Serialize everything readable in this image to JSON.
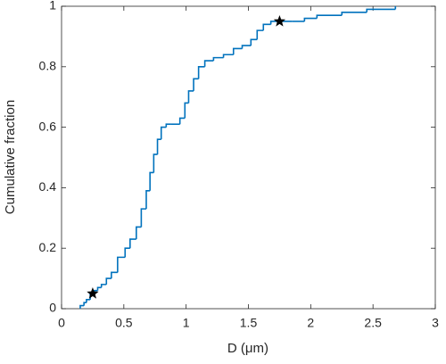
{
  "chart_data": {
    "type": "step",
    "xlabel": "D (μm)",
    "ylabel": "Cumulative fraction",
    "xlim": [
      0,
      3
    ],
    "ylim": [
      0,
      1
    ],
    "xticks": [
      0,
      0.5,
      1,
      1.5,
      2,
      2.5,
      3
    ],
    "yticks": [
      0,
      0.2,
      0.4,
      0.6,
      0.8,
      1
    ],
    "box": true,
    "series": [
      {
        "type": "step",
        "color": "#0072bd",
        "x": [
          0.15,
          0.18,
          0.2,
          0.23,
          0.26,
          0.29,
          0.32,
          0.36,
          0.4,
          0.45,
          0.51,
          0.55,
          0.6,
          0.64,
          0.68,
          0.71,
          0.74,
          0.77,
          0.8,
          0.84,
          0.88,
          0.95,
          0.99,
          1.02,
          1.06,
          1.1,
          1.15,
          1.22,
          1.3,
          1.38,
          1.45,
          1.52,
          1.57,
          1.62,
          1.68,
          1.85,
          1.95,
          2.05,
          2.25,
          2.45,
          2.68
        ],
        "values": [
          0.01,
          0.02,
          0.03,
          0.05,
          0.06,
          0.07,
          0.08,
          0.1,
          0.12,
          0.17,
          0.2,
          0.23,
          0.27,
          0.33,
          0.39,
          0.45,
          0.51,
          0.56,
          0.6,
          0.61,
          0.61,
          0.63,
          0.68,
          0.72,
          0.76,
          0.8,
          0.82,
          0.83,
          0.84,
          0.86,
          0.87,
          0.89,
          0.92,
          0.94,
          0.95,
          0.95,
          0.96,
          0.97,
          0.98,
          0.99,
          1
        ]
      },
      {
        "type": "scatter",
        "color": "#000000",
        "marker": "star",
        "x": [
          0.25,
          1.75
        ],
        "values": [
          0.05,
          0.95
        ]
      }
    ]
  }
}
